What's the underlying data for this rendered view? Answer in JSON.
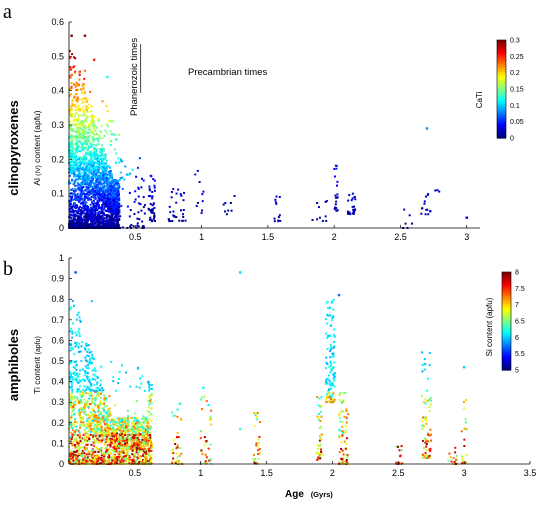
{
  "chart_data": [
    {
      "type": "scatter",
      "panel_letter": "a",
      "mineral_label": "clinopyroxenes",
      "ylabel_main": "Al",
      "ylabel_mid": "(IV)",
      "ylabel_rest": "content (apfu)",
      "xlim": [
        0,
        3.1
      ],
      "ylim": [
        0,
        0.6
      ],
      "y_ticks": [
        "0",
        "0.1",
        "0.2",
        "0.3",
        "0.4",
        "0.5",
        "0.6"
      ],
      "x_ticks": [
        "0.5",
        "1",
        "1.5",
        "2",
        "2.5",
        "3"
      ],
      "annotations": {
        "phanerozoic": "Phanerozoic times",
        "precambrian": "Precambrian times",
        "boundary_age": 0.54
      },
      "colorbar": {
        "label": "CaTi",
        "range": [
          0,
          0.3
        ],
        "ticks": [
          "0",
          "0.05",
          "0.1",
          "0.15",
          "0.2",
          "0.25",
          "0.3"
        ],
        "colormap": "jet"
      },
      "clusters": [
        {
          "age": [
            0.0,
            0.38
          ],
          "y": [
            0.0,
            0.56
          ],
          "n": 2500
        },
        {
          "age": [
            0.38,
            0.58
          ],
          "y": [
            0.0,
            0.21
          ],
          "n": 60
        },
        {
          "age": [
            0.6,
            0.65
          ],
          "y": [
            0.02,
            0.16
          ],
          "n": 40
        },
        {
          "age": [
            0.75,
            0.88
          ],
          "y": [
            0.02,
            0.14
          ],
          "n": 30
        },
        {
          "age": [
            0.95,
            1.02
          ],
          "y": [
            0.04,
            0.2
          ],
          "n": 10
        },
        {
          "age": [
            1.1,
            1.25
          ],
          "y": [
            0.04,
            0.1
          ],
          "n": 8
        },
        {
          "age": [
            1.55,
            1.6
          ],
          "y": [
            0.02,
            0.12
          ],
          "n": 12
        },
        {
          "age": [
            1.82,
            1.95
          ],
          "y": [
            0.02,
            0.08
          ],
          "n": 10
        },
        {
          "age": [
            2.0,
            2.03
          ],
          "y": [
            0.05,
            0.2
          ],
          "n": 20
        },
        {
          "age": [
            2.1,
            2.16
          ],
          "y": [
            0.04,
            0.1
          ],
          "n": 25
        },
        {
          "age": [
            2.52,
            2.6
          ],
          "y": [
            0.0,
            0.06
          ],
          "n": 6
        },
        {
          "age": [
            2.64,
            2.73
          ],
          "y": [
            0.04,
            0.12
          ],
          "n": 14
        },
        {
          "age": [
            2.76,
            2.8
          ],
          "y": [
            0.1,
            0.14
          ],
          "n": 3
        }
      ],
      "notable_points": [
        {
          "age": 0.02,
          "y": 0.56,
          "c": 0.3
        },
        {
          "age": 0.12,
          "y": 0.56,
          "c": 0.29
        },
        {
          "age": 0.19,
          "y": 0.49,
          "c": 0.25
        },
        {
          "age": 0.29,
          "y": 0.44,
          "c": 0.12
        },
        {
          "age": 2.7,
          "y": 0.29,
          "c": 0.08
        },
        {
          "age": 3.0,
          "y": 0.03,
          "c": 0.02
        }
      ]
    },
    {
      "type": "scatter",
      "panel_letter": "b",
      "mineral_label": "amphiboles",
      "ylabel_main": "Ti content",
      "ylabel_rest": "(apfu)",
      "xlim": [
        0,
        3.5
      ],
      "ylim": [
        0,
        1
      ],
      "y_ticks": [
        "0",
        "0.1",
        "0.2",
        "0.3",
        "0.4",
        "0.5",
        "0.6",
        "0.7",
        "0.8",
        "0.9",
        "1"
      ],
      "x_ticks": [
        "0.5",
        "1",
        "1.5",
        "2",
        "2.5",
        "3",
        "3.5"
      ],
      "xlabel_main": "Age",
      "xlabel_unit": "(Gyrs)",
      "colorbar": {
        "label": "Si content (apfu)",
        "range": [
          5,
          8
        ],
        "ticks": [
          "5",
          "5.5",
          "6",
          "6.5",
          "7",
          "7.5",
          "8"
        ],
        "colormap": "jet"
      },
      "clusters": [
        {
          "age": [
            0.0,
            0.6
          ],
          "y": [
            0.0,
            0.9
          ],
          "n": 1800
        },
        {
          "age": [
            0.6,
            0.63
          ],
          "y": [
            0.0,
            0.4
          ],
          "n": 90
        },
        {
          "age": [
            0.78,
            0.86
          ],
          "y": [
            0.0,
            0.3
          ],
          "n": 40
        },
        {
          "age": [
            1.0,
            1.08
          ],
          "y": [
            0.0,
            0.33
          ],
          "n": 40
        },
        {
          "age": [
            1.4,
            1.45
          ],
          "y": [
            0.0,
            0.25
          ],
          "n": 30
        },
        {
          "age": [
            1.88,
            1.93
          ],
          "y": [
            0.02,
            0.33
          ],
          "n": 40
        },
        {
          "age": [
            1.95,
            2.02
          ],
          "y": [
            0.3,
            0.8
          ],
          "n": 120
        },
        {
          "age": [
            2.05,
            2.12
          ],
          "y": [
            0.0,
            0.35
          ],
          "n": 70
        },
        {
          "age": [
            2.48,
            2.53
          ],
          "y": [
            0.0,
            0.1
          ],
          "n": 20
        },
        {
          "age": [
            2.68,
            2.75
          ],
          "y": [
            0.03,
            0.55
          ],
          "n": 80
        },
        {
          "age": [
            2.88,
            2.95
          ],
          "y": [
            0.0,
            0.08
          ],
          "n": 15
        },
        {
          "age": [
            2.98,
            3.02
          ],
          "y": [
            0.0,
            0.4
          ],
          "n": 20
        }
      ],
      "notable_points": [
        {
          "age": 0.05,
          "y": 0.93,
          "c": 5.6
        },
        {
          "age": 1.3,
          "y": 0.93,
          "c": 6.0
        },
        {
          "age": 1.02,
          "y": 0.37,
          "c": 6.2
        },
        {
          "age": 1.3,
          "y": 0.17,
          "c": 6.3
        },
        {
          "age": 2.05,
          "y": 0.82,
          "c": 5.7
        },
        {
          "age": 3.0,
          "y": 0.47,
          "c": 6.0
        }
      ]
    }
  ]
}
